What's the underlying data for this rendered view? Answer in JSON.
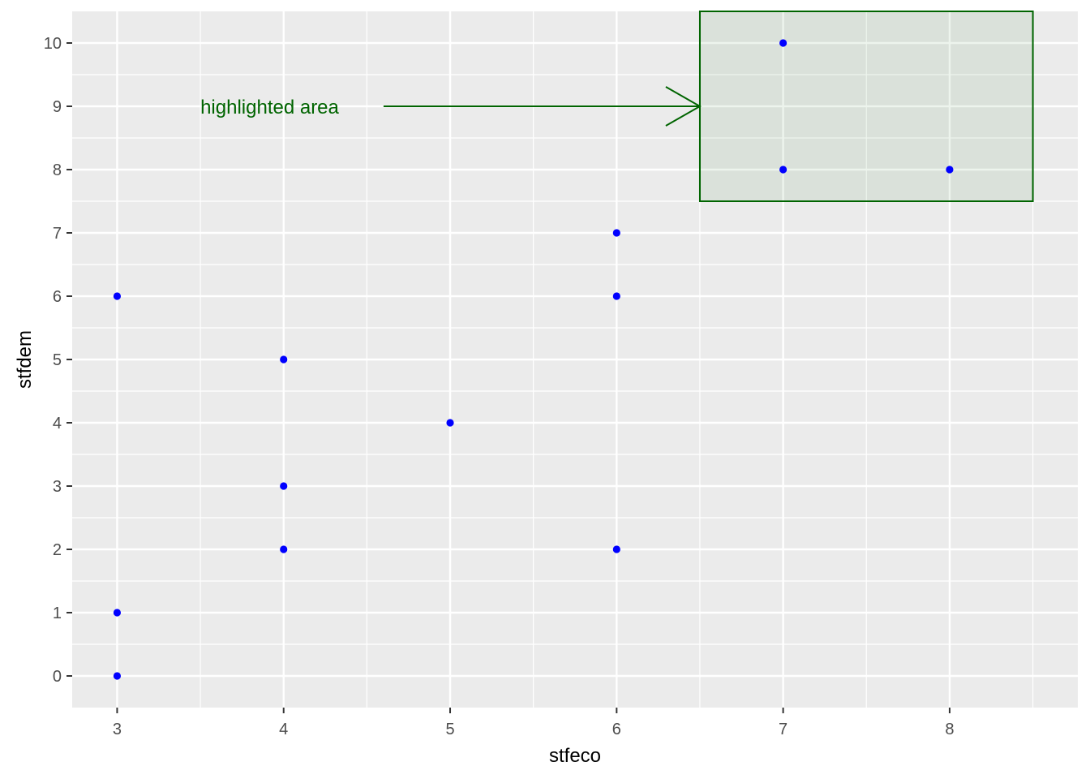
{
  "chart_data": {
    "type": "scatter",
    "xlabel": "stfeco",
    "ylabel": "stfdem",
    "xlim": [
      2.73,
      8.77
    ],
    "ylim": [
      -0.5,
      10.5
    ],
    "x_ticks": [
      "3",
      "4",
      "5",
      "6",
      "7",
      "8"
    ],
    "y_ticks": [
      "0",
      "1",
      "2",
      "3",
      "4",
      "5",
      "6",
      "7",
      "8",
      "9",
      "10"
    ],
    "grid": true,
    "legend": "none",
    "point_color": "#0000ff",
    "points": [
      {
        "x": 3,
        "y": 0
      },
      {
        "x": 3,
        "y": 1
      },
      {
        "x": 3,
        "y": 6
      },
      {
        "x": 4,
        "y": 2
      },
      {
        "x": 4,
        "y": 3
      },
      {
        "x": 4,
        "y": 5
      },
      {
        "x": 5,
        "y": 4
      },
      {
        "x": 6,
        "y": 2
      },
      {
        "x": 6,
        "y": 6
      },
      {
        "x": 6,
        "y": 7
      },
      {
        "x": 7,
        "y": 8
      },
      {
        "x": 7,
        "y": 10
      },
      {
        "x": 8,
        "y": 8
      }
    ],
    "highlight": {
      "xmin": 6.5,
      "xmax": 8.5,
      "ymin": 7.5,
      "ymax": 10.5,
      "color": "#006400"
    },
    "annotation": {
      "text": "highlighted area",
      "x": 3.5,
      "y": 9,
      "arrow_from": [
        4.6,
        9
      ],
      "arrow_to": [
        6.5,
        9
      ],
      "color": "#006400"
    },
    "panel_background": "#ebebeb",
    "grid_color": "#ffffff"
  }
}
